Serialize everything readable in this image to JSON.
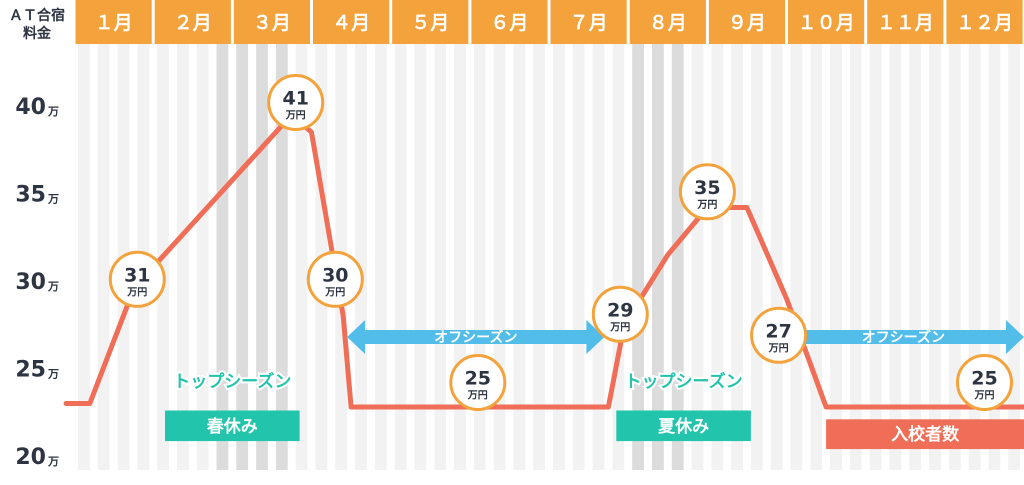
{
  "colors": {
    "header": "#f3a23c",
    "line": "#f06e57",
    "bubble_border": "#f3a23c",
    "column_light": "#f2f2f2",
    "column_dark": "#dcdcdc",
    "season_text": "#22c4ab",
    "holiday_box": "#22c4ab",
    "offseason_arrow": "#53bde9",
    "enroll_box": "#f06e57",
    "text_dark": "#2d3442"
  },
  "corner_label": [
    "ＡＴ合宿",
    "料金"
  ],
  "chart_data": {
    "type": "line",
    "title": "",
    "ylabel": "ＡＴ合宿料金",
    "ylim": [
      20,
      42
    ],
    "y_ticks": [
      {
        "value": 20,
        "label": "20",
        "unit": "万"
      },
      {
        "value": 25,
        "label": "25",
        "unit": "万"
      },
      {
        "value": 30,
        "label": "30",
        "unit": "万"
      },
      {
        "value": 35,
        "label": "35",
        "unit": "万"
      },
      {
        "value": 40,
        "label": "40",
        "unit": "万"
      }
    ],
    "categories": [
      "１月",
      "２月",
      "３月",
      "４月",
      "５月",
      "６月",
      "７月",
      "８月",
      "９月",
      "１０月",
      "１１月",
      "１２月"
    ],
    "highlighted_weeks": [
      7,
      8,
      9,
      10,
      28,
      29,
      30
    ],
    "series": [
      {
        "points": [
          {
            "x": -0.1,
            "y": 23.0
          },
          {
            "x": 0.2,
            "y": 23.0
          },
          {
            "x": 0.75,
            "y": 29.5
          },
          {
            "x": 1.0,
            "y": 30.8
          },
          {
            "x": 2.75,
            "y": 39.5
          },
          {
            "x": 3.0,
            "y": 38.5
          },
          {
            "x": 3.4,
            "y": 28.0
          },
          {
            "x": 3.5,
            "y": 22.8
          },
          {
            "x": 6.75,
            "y": 22.8
          },
          {
            "x": 6.95,
            "y": 27.5
          },
          {
            "x": 7.5,
            "y": 31.5
          },
          {
            "x": 8.0,
            "y": 34.2
          },
          {
            "x": 8.5,
            "y": 34.2
          },
          {
            "x": 9.0,
            "y": 29.0
          },
          {
            "x": 9.5,
            "y": 22.8
          },
          {
            "x": 12.1,
            "y": 22.8
          }
        ]
      }
    ],
    "price_labels": [
      {
        "x": 0.8,
        "y": 30.1,
        "value": "31",
        "unit": "万円"
      },
      {
        "x": 2.8,
        "y": 40.2,
        "value": "41",
        "unit": "万円"
      },
      {
        "x": 3.3,
        "y": 30.1,
        "value": "30",
        "unit": "万円"
      },
      {
        "x": 5.1,
        "y": 24.2,
        "value": "25",
        "unit": "万円"
      },
      {
        "x": 6.9,
        "y": 28.1,
        "value": "29",
        "unit": "万円"
      },
      {
        "x": 8.0,
        "y": 35.1,
        "value": "35",
        "unit": "万円"
      },
      {
        "x": 8.9,
        "y": 26.9,
        "value": "27",
        "unit": "万円"
      },
      {
        "x": 11.5,
        "y": 24.2,
        "value": "25",
        "unit": "万円"
      }
    ],
    "annotations": {
      "top_season": [
        {
          "text": "トップシーズン",
          "x": 2.0,
          "y": 24.3
        },
        {
          "text": "トップシーズン",
          "x": 7.7,
          "y": 24.3
        }
      ],
      "holidays": [
        {
          "text": "春休み",
          "x0": 1.15,
          "x1": 2.85,
          "y_top": 22.6,
          "y_bottom": 20.85
        },
        {
          "text": "夏休み",
          "x0": 6.85,
          "x1": 8.55,
          "y_top": 22.6,
          "y_bottom": 20.85
        }
      ],
      "off_season": [
        {
          "text": "オフシーズン",
          "x0": 3.45,
          "x1": 6.7,
          "y": 26.8
        },
        {
          "text": "オフシーズン",
          "x0": 8.95,
          "x1": 12.0,
          "y": 26.8
        }
      ],
      "enrollment": {
        "text": "入校者数",
        "x0": 9.5,
        "x1": 12.0,
        "y_top": 22.1,
        "y_bottom": 20.4
      }
    }
  }
}
